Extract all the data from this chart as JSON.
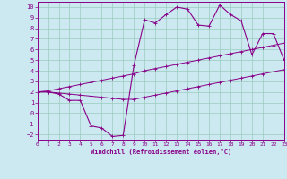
{
  "xlabel": "Windchill (Refroidissement éolien,°C)",
  "bg_color": "#cce8f0",
  "grid_color": "#99ccbb",
  "line_color": "#880088",
  "xmin": 0,
  "xmax": 23,
  "ymin": -2.5,
  "ymax": 10.5,
  "yticks": [
    -2,
    -1,
    0,
    1,
    2,
    3,
    4,
    5,
    6,
    7,
    8,
    9,
    10
  ],
  "xticks": [
    0,
    1,
    2,
    3,
    4,
    5,
    6,
    7,
    8,
    9,
    10,
    11,
    12,
    13,
    14,
    15,
    16,
    17,
    18,
    19,
    20,
    21,
    22,
    23
  ],
  "line1_x": [
    0,
    1,
    2,
    3,
    4,
    5,
    6,
    7,
    8,
    9,
    10,
    11,
    12,
    13,
    14,
    15,
    16,
    17,
    18,
    19,
    20,
    21,
    22,
    23
  ],
  "line1_y": [
    2.0,
    2.0,
    1.9,
    1.8,
    1.7,
    1.6,
    1.5,
    1.4,
    1.3,
    1.3,
    1.5,
    1.7,
    1.9,
    2.1,
    2.3,
    2.5,
    2.7,
    2.9,
    3.1,
    3.3,
    3.5,
    3.7,
    3.9,
    4.1
  ],
  "line2_x": [
    0,
    1,
    2,
    3,
    4,
    5,
    6,
    7,
    8,
    9,
    10,
    11,
    12,
    13,
    14,
    15,
    16,
    17,
    18,
    19,
    20,
    21,
    22,
    23
  ],
  "line2_y": [
    2.0,
    2.1,
    2.3,
    2.5,
    2.7,
    2.9,
    3.1,
    3.3,
    3.5,
    3.7,
    4.0,
    4.2,
    4.4,
    4.6,
    4.8,
    5.0,
    5.2,
    5.4,
    5.6,
    5.8,
    6.0,
    6.2,
    6.4,
    6.6
  ],
  "line3_x": [
    0,
    1,
    2,
    3,
    4,
    5,
    6,
    7,
    8,
    9,
    10,
    11,
    12,
    13,
    14,
    15,
    16,
    17,
    18,
    19,
    20,
    21,
    22,
    23
  ],
  "line3_y": [
    2.0,
    2.0,
    1.8,
    1.2,
    1.2,
    -1.2,
    -1.4,
    -2.2,
    -2.1,
    4.5,
    8.8,
    8.5,
    9.3,
    10.0,
    9.8,
    8.3,
    8.2,
    10.2,
    9.3,
    8.7,
    5.5,
    7.5,
    7.5,
    5.0
  ]
}
